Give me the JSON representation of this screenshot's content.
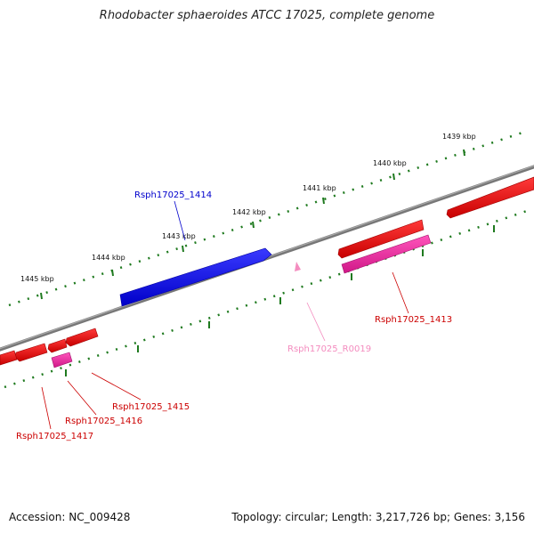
{
  "title": "Rhodobacter sphaeroides ATCC 17025, complete genome",
  "footer": {
    "accession": "Accession: NC_009428",
    "summary": "Topology: circular; Length: 3,217,726 bp; Genes: 3,156"
  },
  "colors": {
    "backbone": "#808080",
    "ticks": "#1f7a1f",
    "forward_gene": "#0000ee",
    "reverse_gene": "#ee0000",
    "rna_gene": "#ee2299",
    "trna_gene": "#f48cbf"
  },
  "scale": {
    "upper": [
      {
        "label": "1439 kbp"
      },
      {
        "label": "1440 kbp"
      },
      {
        "label": "1441 kbp"
      },
      {
        "label": "1442 kbp"
      },
      {
        "label": "1443 kbp"
      },
      {
        "label": "1444 kbp"
      },
      {
        "label": "1445 kbp"
      }
    ]
  },
  "genes": {
    "g1414": "Rsph17025_1414",
    "g1413": "Rsph17025_1413",
    "gR0019": "Rsph17025_R0019",
    "g1415": "Rsph17025_1415",
    "g1416": "Rsph17025_1416",
    "g1417": "Rsph17025_1417"
  }
}
